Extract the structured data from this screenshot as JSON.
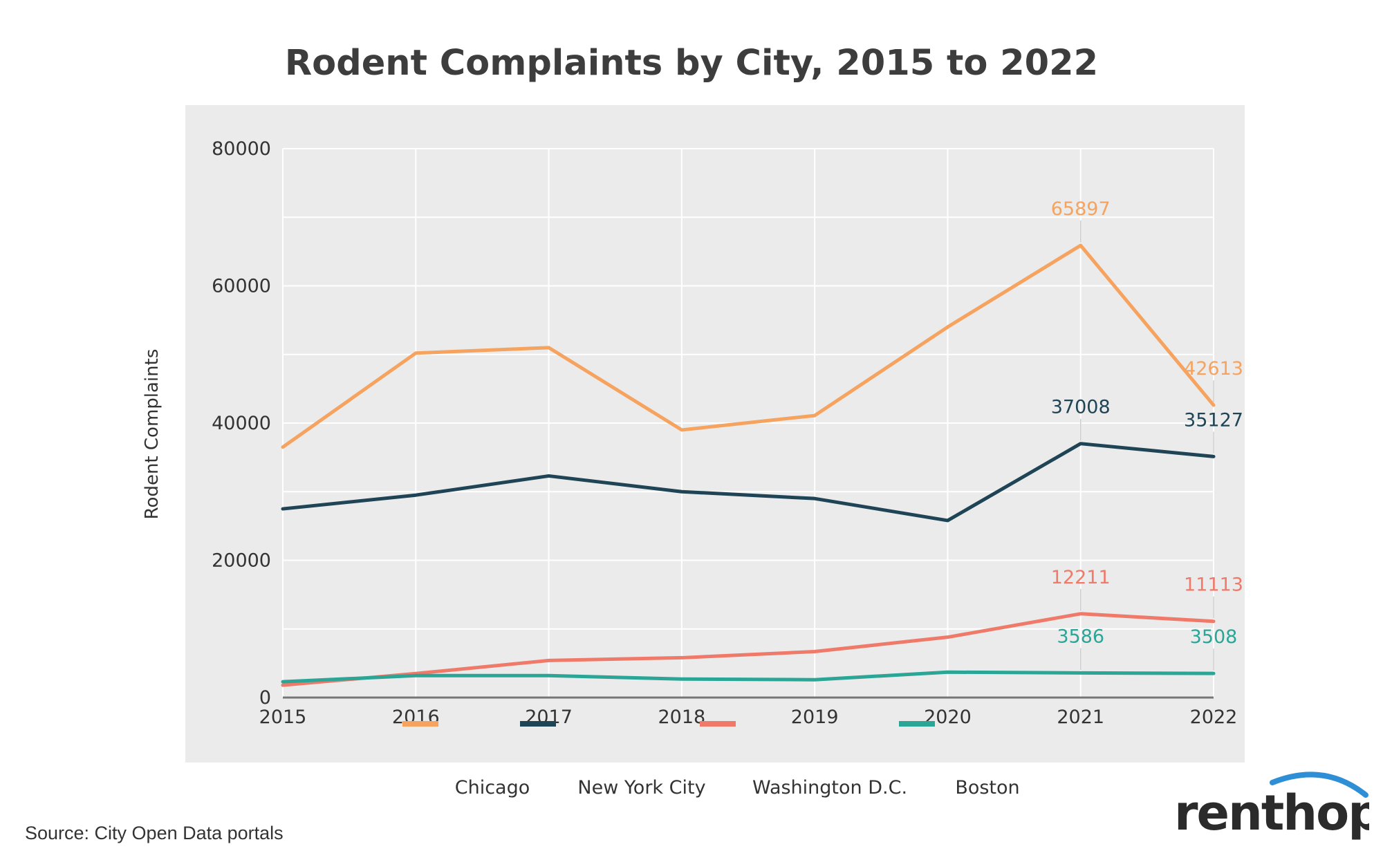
{
  "colors": {
    "chicago": "#f5a35f",
    "new_york_city": "#1f4455",
    "washington_dc": "#ef7a6a",
    "boston": "#2aa596",
    "plot_background": "#ebebeb",
    "grid": "#ffffff",
    "axis_text": "#333333"
  },
  "chart_data": {
    "type": "line",
    "title": "Rodent Complaints by City, 2015 to 2022",
    "xlabel": "",
    "ylabel": "Rodent Complaints",
    "x": [
      "2015",
      "2016",
      "2017",
      "2018",
      "2019",
      "2020",
      "2021",
      "2022"
    ],
    "ylim": [
      0,
      80000
    ],
    "yticks": [
      0,
      20000,
      40000,
      60000,
      80000
    ],
    "grid": true,
    "legend_position": "bottom",
    "series": [
      {
        "name": "Chicago",
        "color": "#f5a35f",
        "values": [
          36500,
          50200,
          51000,
          39000,
          41100,
          54000,
          65897,
          42613
        ],
        "labels": [
          null,
          null,
          null,
          null,
          null,
          null,
          "65897",
          "42613"
        ]
      },
      {
        "name": "New York City",
        "color": "#1f4455",
        "values": [
          27500,
          29500,
          32300,
          30000,
          29000,
          25800,
          37008,
          35127
        ],
        "labels": [
          null,
          null,
          null,
          null,
          null,
          null,
          "37008",
          "35127"
        ]
      },
      {
        "name": "Washington D.C.",
        "color": "#ef7a6a",
        "values": [
          1800,
          3500,
          5400,
          5800,
          6700,
          8800,
          12211,
          11113
        ],
        "labels": [
          null,
          null,
          null,
          null,
          null,
          null,
          "12211",
          "11113"
        ]
      },
      {
        "name": "Boston",
        "color": "#2aa596",
        "values": [
          2300,
          3200,
          3200,
          2700,
          2600,
          3700,
          3586,
          3508
        ],
        "labels": [
          null,
          null,
          null,
          null,
          null,
          null,
          "3586",
          "3508"
        ]
      }
    ]
  },
  "footer": {
    "source": "Source: City Open Data portals",
    "brand": "renthop"
  }
}
